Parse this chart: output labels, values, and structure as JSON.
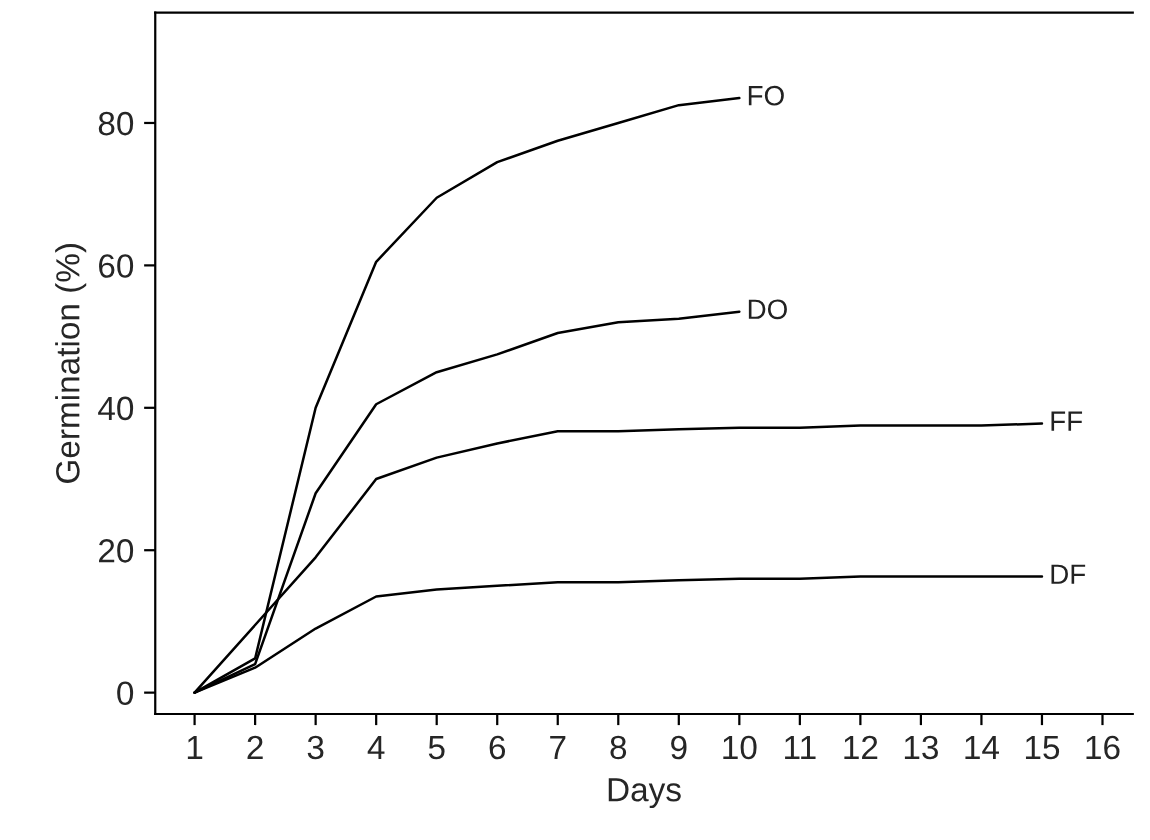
{
  "chart_data": {
    "type": "line",
    "xlabel": "Days",
    "ylabel": "Germination (%)",
    "xlim": [
      0.35,
      16.5
    ],
    "xticks": [
      1,
      2,
      3,
      4,
      5,
      6,
      7,
      8,
      9,
      10,
      11,
      12,
      13,
      14,
      15,
      16
    ],
    "ylim": [
      -3,
      95.5
    ],
    "yticks": [
      0,
      20,
      40,
      60,
      80
    ],
    "grid": false,
    "legend": false,
    "marker": "none",
    "line_style": "solid",
    "series": [
      {
        "name": "FO",
        "color": "#000000",
        "x": [
          1,
          2,
          3,
          4,
          5,
          6,
          7,
          8,
          9,
          10
        ],
        "values": [
          0,
          4.8,
          40,
          60.5,
          69.5,
          74.5,
          77.5,
          80,
          82.5,
          83.5
        ]
      },
      {
        "name": "DO",
        "color": "#000000",
        "x": [
          1,
          2,
          3,
          4,
          5,
          6,
          7,
          8,
          9,
          10
        ],
        "values": [
          0,
          4,
          28,
          40.5,
          45,
          47.5,
          50.5,
          52,
          52.5,
          53.5
        ]
      },
      {
        "name": "FF",
        "color": "#000000",
        "x": [
          1,
          2,
          3,
          4,
          5,
          6,
          7,
          8,
          9,
          10,
          11,
          12,
          13,
          14,
          15
        ],
        "values": [
          0,
          9.5,
          19,
          30,
          33,
          35,
          36.7,
          36.7,
          37,
          37.2,
          37.2,
          37.5,
          37.5,
          37.5,
          37.8
        ]
      },
      {
        "name": "DF",
        "color": "#000000",
        "x": [
          1,
          2,
          3,
          4,
          5,
          6,
          7,
          8,
          9,
          10,
          11,
          12,
          13,
          14,
          15
        ],
        "values": [
          0,
          3.5,
          9,
          13.5,
          14.5,
          15,
          15.5,
          15.5,
          15.8,
          16,
          16,
          16.3,
          16.3,
          16.3,
          16.3
        ]
      }
    ]
  }
}
